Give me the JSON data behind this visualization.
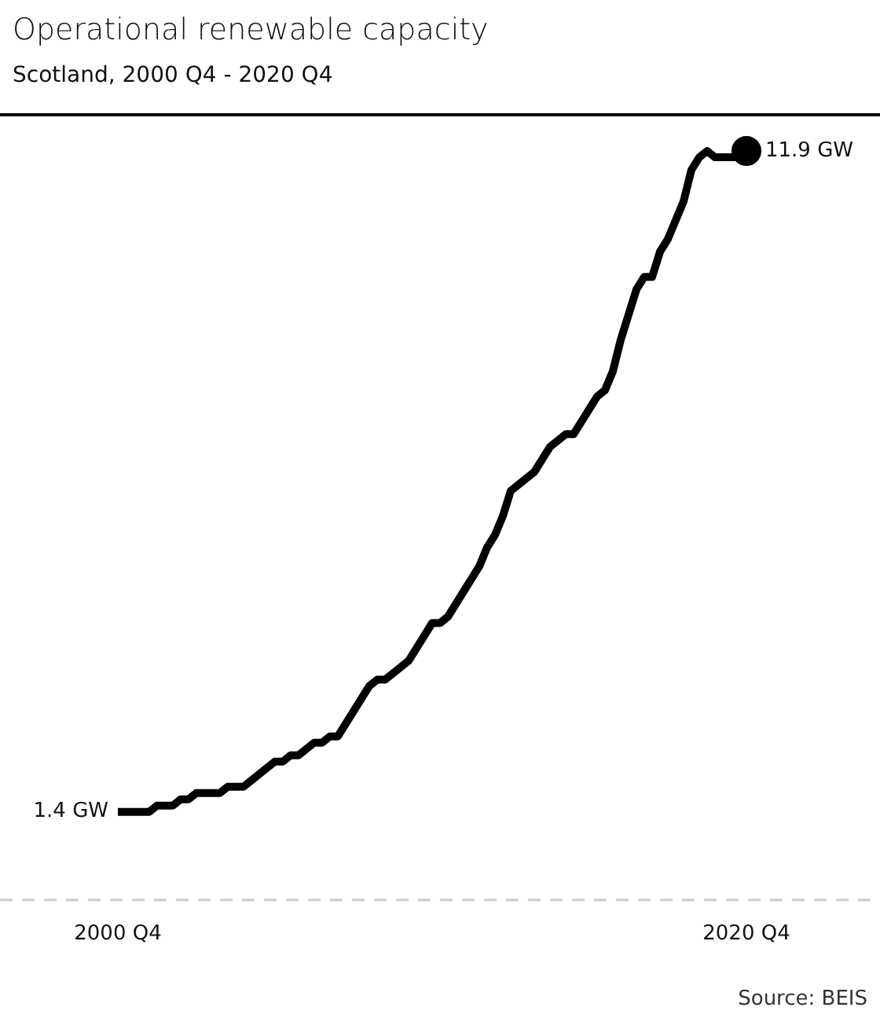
{
  "chart_data": {
    "type": "line",
    "title": "Operational renewable capacity",
    "subtitle": "Scotland, 2000 Q4 - 2020 Q4",
    "categories": [
      "2000 Q4",
      null,
      null,
      null,
      null,
      null,
      null,
      null,
      null,
      null,
      null,
      null,
      null,
      null,
      null,
      null,
      null,
      null,
      null,
      null,
      null,
      null,
      null,
      null,
      null,
      null,
      null,
      null,
      null,
      null,
      null,
      null,
      null,
      null,
      null,
      null,
      null,
      null,
      null,
      null,
      null,
      null,
      null,
      null,
      null,
      null,
      null,
      null,
      null,
      null,
      null,
      null,
      null,
      null,
      null,
      null,
      null,
      null,
      null,
      null,
      null,
      null,
      null,
      null,
      null,
      null,
      null,
      null,
      null,
      null,
      null,
      null,
      null,
      null,
      null,
      null,
      null,
      null,
      null,
      null,
      "2020 Q4"
    ],
    "series": [
      {
        "color": "#000000",
        "values": [
          1.4,
          1.4,
          1.4,
          1.4,
          1.4,
          1.5,
          1.5,
          1.5,
          1.6,
          1.6,
          1.7,
          1.7,
          1.7,
          1.7,
          1.8,
          1.8,
          1.8,
          1.9,
          2.0,
          2.1,
          2.2,
          2.2,
          2.3,
          2.3,
          2.4,
          2.5,
          2.5,
          2.6,
          2.6,
          2.8,
          3.0,
          3.2,
          3.4,
          3.5,
          3.5,
          3.6,
          3.7,
          3.8,
          4.0,
          4.2,
          4.4,
          4.4,
          4.5,
          4.7,
          4.9,
          5.1,
          5.3,
          5.6,
          5.8,
          6.1,
          6.5,
          6.6,
          6.7,
          6.8,
          7.0,
          7.2,
          7.3,
          7.4,
          7.4,
          7.6,
          7.8,
          8.0,
          8.1,
          8.4,
          8.9,
          9.3,
          9.7,
          9.9,
          9.9,
          10.3,
          10.5,
          10.8,
          11.1,
          11.6,
          11.8,
          11.9,
          11.8,
          11.8,
          11.8,
          11.8,
          11.9
        ],
        "value_labels": [
          "1.4 GW",
          null,
          null,
          null,
          null,
          null,
          null,
          null,
          null,
          null,
          null,
          null,
          null,
          null,
          null,
          null,
          null,
          null,
          null,
          null,
          null,
          null,
          null,
          null,
          null,
          null,
          null,
          null,
          null,
          null,
          null,
          null,
          null,
          null,
          null,
          null,
          null,
          null,
          null,
          null,
          null,
          null,
          null,
          null,
          null,
          null,
          null,
          null,
          null,
          null,
          null,
          null,
          null,
          null,
          null,
          null,
          null,
          null,
          null,
          null,
          null,
          null,
          null,
          null,
          null,
          null,
          null,
          null,
          null,
          null,
          null,
          null,
          null,
          null,
          null,
          null,
          null,
          null,
          null,
          null,
          "11.9 GW"
        ]
      }
    ],
    "ylim": [
      0,
      12.45
    ],
    "ref_lines": [
      {
        "axis": "y",
        "value": 0,
        "color": "#cccccc",
        "line_style": "dashed"
      }
    ],
    "annotations": [
      "Source: BEIS"
    ],
    "tick_labels": "x",
    "legend": false,
    "grid": false
  }
}
